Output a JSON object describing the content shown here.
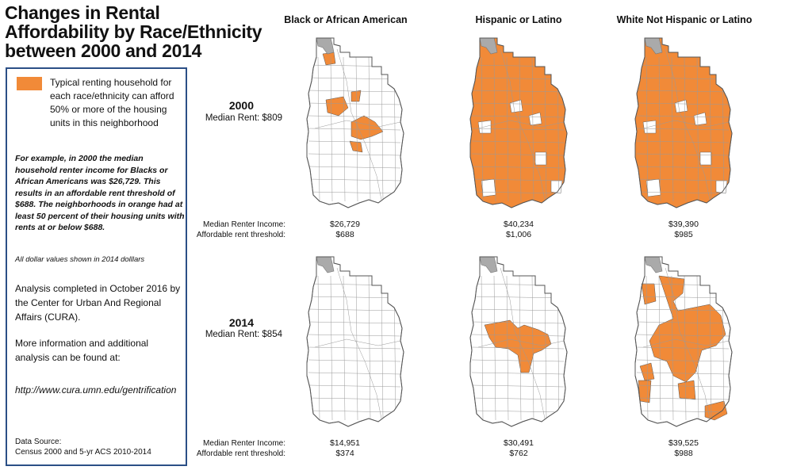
{
  "title": "Changes in Rental Affordability by Race/Ethnicity between 2000 and 2014",
  "legend": {
    "text": "Typical renting household for each race/ethnicity can afford 50% or more of the housing units in this neighborhood",
    "color": "#f18a38"
  },
  "example_text": "For example, in 2000 the median household renter income for Blacks or African Americans was $26,729. This results in an affordable rent threshold of $688.  The neighborhoods in orange had at least 50 percent of their housing units with rents at or below $688.",
  "dollars_note": "All dollar values shown in 2014 dolllars",
  "analysis_text": "Analysis completed in October 2016 by the  Center for Urban And Regional Affairs (CURA).",
  "more_info": "More information and additional analysis can be found at:",
  "url": "http://www.cura.umn.edu/gentrification",
  "data_source": {
    "line1": "Data Source:",
    "line2": "Census 2000 and 5-yr ACS 2010-2014"
  },
  "columns": [
    "Black or African American",
    "Hispanic or Latino",
    "White Not Hispanic or Latino"
  ],
  "row_labels": {
    "income": "Median Renter Income:",
    "threshold": "Affordable rent threshold:"
  },
  "years": [
    {
      "year": "2000",
      "median_rent": "Median Rent: $809",
      "values": [
        {
          "income": "$26,729",
          "threshold": "$688",
          "coverage": "low"
        },
        {
          "income": "$40,234",
          "threshold": "$1,006",
          "coverage": "high"
        },
        {
          "income": "$39,390",
          "threshold": "$985",
          "coverage": "high"
        }
      ]
    },
    {
      "year": "2014",
      "median_rent": "Median Rent: $854",
      "values": [
        {
          "income": "$14,951",
          "threshold": "$374",
          "coverage": "none"
        },
        {
          "income": "$30,491",
          "threshold": "$762",
          "coverage": "medium"
        },
        {
          "income": "$39,525",
          "threshold": "$988",
          "coverage": "medium-high"
        }
      ]
    }
  ],
  "colors": {
    "orange": "#f18a38",
    "border": "#2b4f86",
    "gray": "#aaaaaa"
  }
}
